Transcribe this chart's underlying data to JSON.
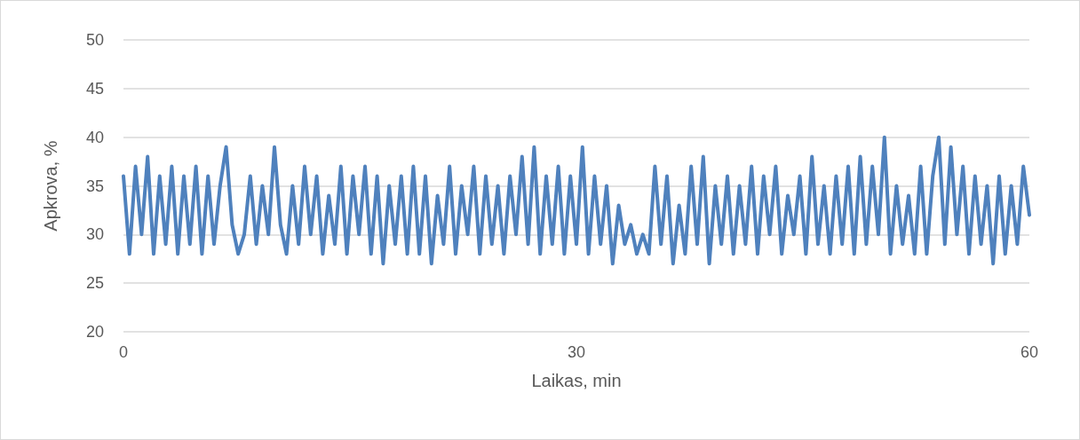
{
  "chart_data": {
    "type": "line",
    "xlabel": "Laikas, min",
    "ylabel": "Apkrova, %",
    "x": [
      0,
      0.4,
      0.8,
      1.2,
      1.6,
      2,
      2.4,
      2.8,
      3.2,
      3.6,
      4,
      4.4,
      4.8,
      5.2,
      5.6,
      6,
      6.4,
      6.8,
      7.2,
      7.6,
      8,
      8.4,
      8.8,
      9.2,
      9.6,
      10,
      10.4,
      10.8,
      11.2,
      11.6,
      12,
      12.4,
      12.8,
      13.2,
      13.6,
      14,
      14.4,
      14.8,
      15.2,
      15.6,
      16,
      16.4,
      16.8,
      17.2,
      17.6,
      18,
      18.4,
      18.8,
      19.2,
      19.6,
      20,
      20.4,
      20.8,
      21.2,
      21.6,
      22,
      22.4,
      22.8,
      23.2,
      23.6,
      24,
      24.4,
      24.8,
      25.2,
      25.6,
      26,
      26.4,
      26.8,
      27.2,
      27.6,
      28,
      28.4,
      28.8,
      29.2,
      29.6,
      30,
      30.4,
      30.8,
      31.2,
      31.6,
      32,
      32.4,
      32.8,
      33.2,
      33.6,
      34,
      34.4,
      34.8,
      35.2,
      35.6,
      36,
      36.4,
      36.8,
      37.2,
      37.6,
      38,
      38.4,
      38.8,
      39.2,
      39.6,
      40,
      40.4,
      40.8,
      41.2,
      41.6,
      42,
      42.4,
      42.8,
      43.2,
      43.6,
      44,
      44.4,
      44.8,
      45.2,
      45.6,
      46,
      46.4,
      46.8,
      47.2,
      47.6,
      48,
      48.4,
      48.8,
      49.2,
      49.6,
      50,
      50.4,
      50.8,
      51.2,
      51.6,
      52,
      52.4,
      52.8,
      53.2,
      53.6,
      54,
      54.4,
      54.8,
      55.2,
      55.6,
      56,
      56.4,
      56.8,
      57.2,
      57.6,
      58,
      58.4,
      58.8,
      59.2,
      59.6,
      60
    ],
    "series": [
      {
        "color": "#4f81bd",
        "values": [
          36,
          28,
          37,
          30,
          38,
          28,
          36,
          29,
          37,
          28,
          36,
          29,
          37,
          28,
          36,
          29,
          35,
          39,
          31,
          28,
          30,
          36,
          29,
          35,
          30,
          39,
          31,
          28,
          35,
          29,
          37,
          30,
          36,
          28,
          34,
          29,
          37,
          28,
          36,
          30,
          37,
          28,
          36,
          27,
          35,
          29,
          36,
          28,
          37,
          28,
          36,
          27,
          34,
          29,
          37,
          28,
          35,
          30,
          37,
          28,
          36,
          29,
          35,
          28,
          36,
          30,
          38,
          29,
          39,
          28,
          36,
          29,
          37,
          28,
          36,
          29,
          39,
          28,
          36,
          29,
          35,
          27,
          33,
          29,
          31,
          28,
          30,
          28,
          37,
          29,
          36,
          27,
          33,
          28,
          37,
          29,
          38,
          27,
          35,
          29,
          36,
          28,
          35,
          29,
          37,
          28,
          36,
          30,
          37,
          28,
          34,
          30,
          36,
          28,
          38,
          29,
          35,
          28,
          36,
          29,
          37,
          28,
          38,
          29,
          37,
          30,
          40,
          28,
          35,
          29,
          34,
          28,
          37,
          28,
          36,
          40,
          29,
          39,
          30,
          37,
          28,
          36,
          29,
          35,
          27,
          36,
          28,
          35,
          29,
          37,
          32
        ]
      }
    ],
    "xlim": [
      0,
      60
    ],
    "xticks": [
      0,
      30,
      60
    ],
    "ylim": [
      20,
      50
    ],
    "yticks": [
      20,
      25,
      30,
      35,
      40,
      45,
      50
    ],
    "grid": "y",
    "marker": "none",
    "line_style": "solid"
  }
}
